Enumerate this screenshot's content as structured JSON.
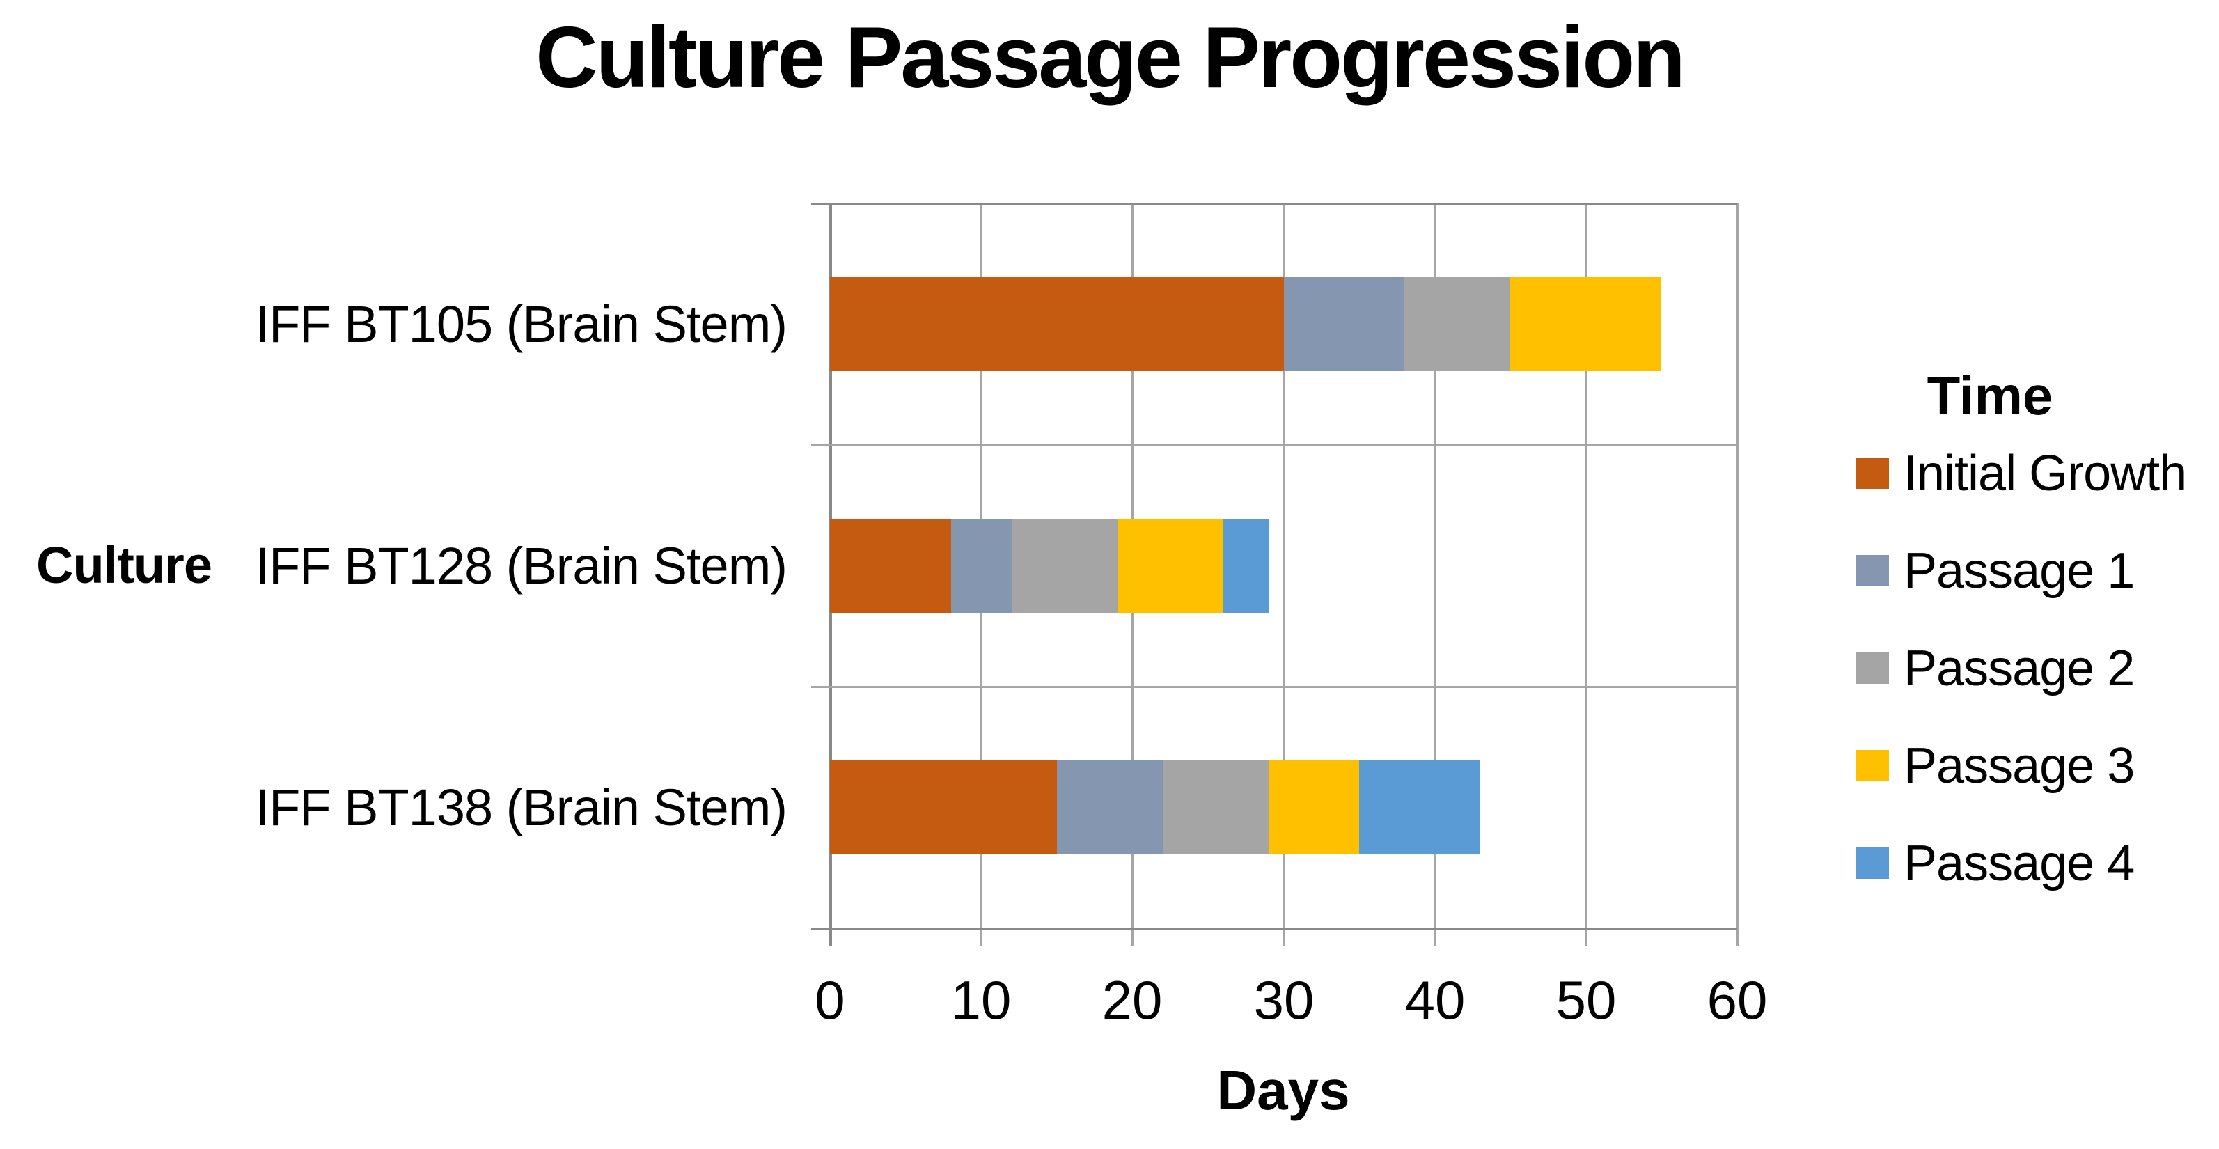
{
  "title": "Culture Passage Progression",
  "x_axis": {
    "label": "Days"
  },
  "y_axis": {
    "label": "Culture"
  },
  "legend": {
    "title": "Time",
    "position": "right"
  },
  "colors": {
    "initial_growth": "#C55A11",
    "passage_1": "#8496B0",
    "passage_2": "#A5A5A5",
    "passage_3": "#FFC000",
    "passage_4": "#5B9BD5",
    "gridline": "#A6A6A6",
    "axis_line": "#898989",
    "text": "#000000"
  },
  "chart_data": {
    "type": "bar",
    "orientation": "horizontal",
    "stacked": true,
    "title": "Culture Passage Progression",
    "xlabel": "Days",
    "ylabel": "Culture",
    "xlim": [
      0,
      60
    ],
    "x_ticks": [
      0,
      10,
      20,
      30,
      40,
      50,
      60
    ],
    "grid": true,
    "legend_title": "Time",
    "legend_position": "right",
    "categories": [
      "IFF BT105 (Brain Stem)",
      "IFF BT128 (Brain Stem)",
      "IFF BT138 (Brain Stem)"
    ],
    "series": [
      {
        "name": "Initial Growth",
        "color": "#C55A11",
        "values": [
          30,
          8,
          15
        ]
      },
      {
        "name": "Passage 1",
        "color": "#8496B0",
        "values": [
          8,
          4,
          7
        ]
      },
      {
        "name": "Passage 2",
        "color": "#A5A5A5",
        "values": [
          7,
          7,
          7
        ]
      },
      {
        "name": "Passage 3",
        "color": "#FFC000",
        "values": [
          10,
          7,
          6
        ]
      },
      {
        "name": "Passage 4",
        "color": "#5B9BD5",
        "values": [
          0,
          3,
          8
        ]
      }
    ],
    "totals": [
      55,
      29,
      43
    ]
  }
}
